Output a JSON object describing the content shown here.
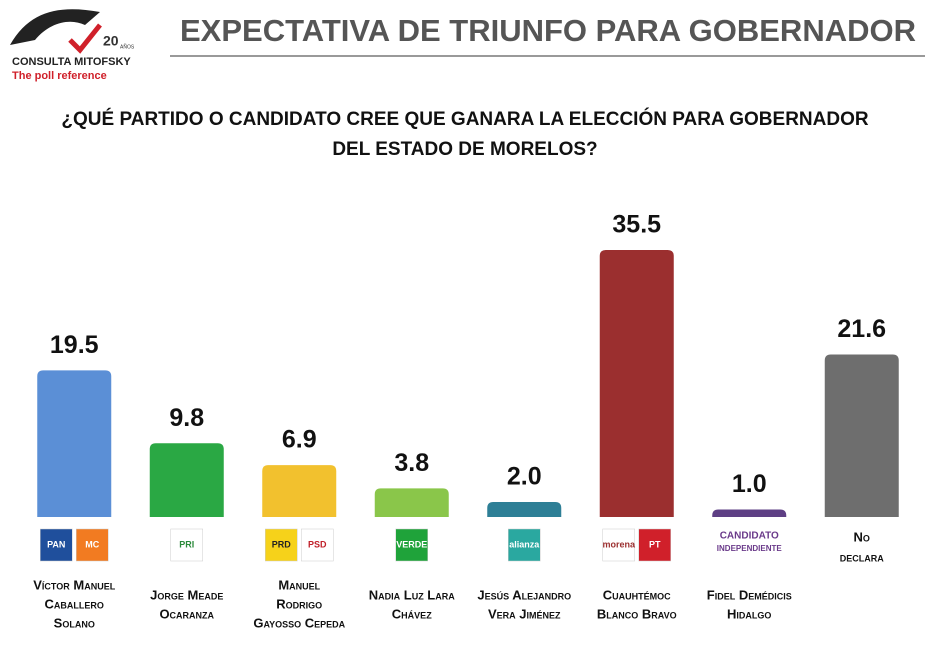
{
  "header": {
    "brand": "CONSULTA MITOFSKY",
    "tagline": "The poll reference",
    "years": "20",
    "years_word": "AÑOS"
  },
  "chart_data": {
    "type": "bar",
    "title": "EXPECTATIVA DE TRIUNFO PARA GOBERNADOR",
    "subtitle": [
      "¿QUÉ PARTIDO O CANDIDATO CREE QUE GANARA LA ELECCIÓN PARA GOBERNADOR",
      "DEL ESTADO DE MORELOS?"
    ],
    "categories": [
      [
        "Víctor Manuel",
        "Caballero",
        "Solano"
      ],
      [
        "Jorge Meade",
        "Ocaranza"
      ],
      [
        "Manuel",
        "Rodrigo",
        "Gayosso Cepeda"
      ],
      [
        "Nadia Luz Lara",
        "Chávez"
      ],
      [
        "Jesús Alejandro",
        "Vera Jiménez"
      ],
      [
        "Cuauhtémoc",
        "Blanco Bravo"
      ],
      [
        "Fidel Demédicis",
        "Hidalgo"
      ],
      [
        "No",
        "declara"
      ]
    ],
    "logos": [
      [
        "PAN",
        "MC"
      ],
      [
        "PRI"
      ],
      [
        "PRD",
        "PSD"
      ],
      [
        "VERDE"
      ],
      [
        "alianza"
      ],
      [
        "morena",
        "PT"
      ],
      [
        "CANDIDATO",
        "INDEPENDIENTE"
      ],
      []
    ],
    "values": [
      19.5,
      9.8,
      6.9,
      3.8,
      2.0,
      35.5,
      1.0,
      21.6
    ],
    "value_labels": [
      "19.5",
      "9.8",
      "6.9",
      "3.8",
      "2.0",
      "35.5",
      "1.0",
      "21.6"
    ],
    "colors": [
      "#5b8fd6",
      "#2aa844",
      "#f2c12e",
      "#8ac64a",
      "#2e7f96",
      "#9b2f2f",
      "#5e3f84",
      "#6e6e6e"
    ]
  }
}
